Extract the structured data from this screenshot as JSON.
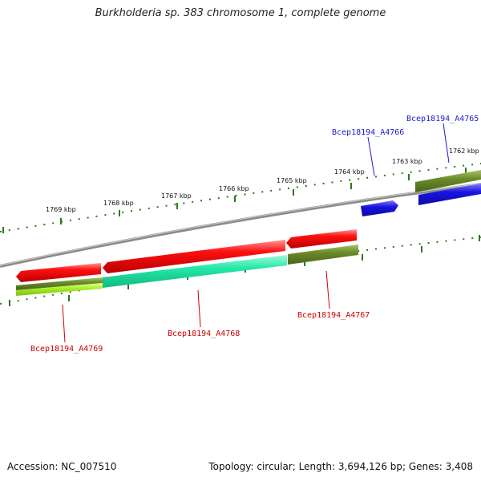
{
  "title": "Burkholderia sp. 383 chromosome 1, complete genome",
  "accession_text": "Accession: NC_007510",
  "summary_text": "Topology: circular; Length: 3,694,126 bp; Genes: 3,408",
  "colors": {
    "forward_strand_label": "#1a1ad0",
    "reverse_strand_label": "#cc0000",
    "red_gene": "#ee0000",
    "olive_gene": "#6b8a2a",
    "teal_gene": "#22e8a8",
    "lime_gene": "#aaf02a",
    "blue_gene": "#1a14e0",
    "backbone": "#8a8a8a",
    "tick": "#2a7a12"
  },
  "scale_ticks": [
    "1769 kbp",
    "1768 kbp",
    "1767 kbp",
    "1766 kbp",
    "1765 kbp",
    "1764 kbp",
    "1763 kbp",
    "1762 kbp"
  ],
  "gene_labels": [
    {
      "id": "forward-a4766",
      "text": "Bcep18194_A4766",
      "strand": "forward"
    },
    {
      "id": "forward-a4765",
      "text": "Bcep18194_A4765",
      "strand": "forward"
    },
    {
      "id": "reverse-a4769",
      "text": "Bcep18194_A4769",
      "strand": "reverse"
    },
    {
      "id": "reverse-a4768",
      "text": "Bcep18194_A4768",
      "strand": "reverse"
    },
    {
      "id": "reverse-a4767",
      "text": "Bcep18194_A4767",
      "strand": "reverse"
    }
  ]
}
